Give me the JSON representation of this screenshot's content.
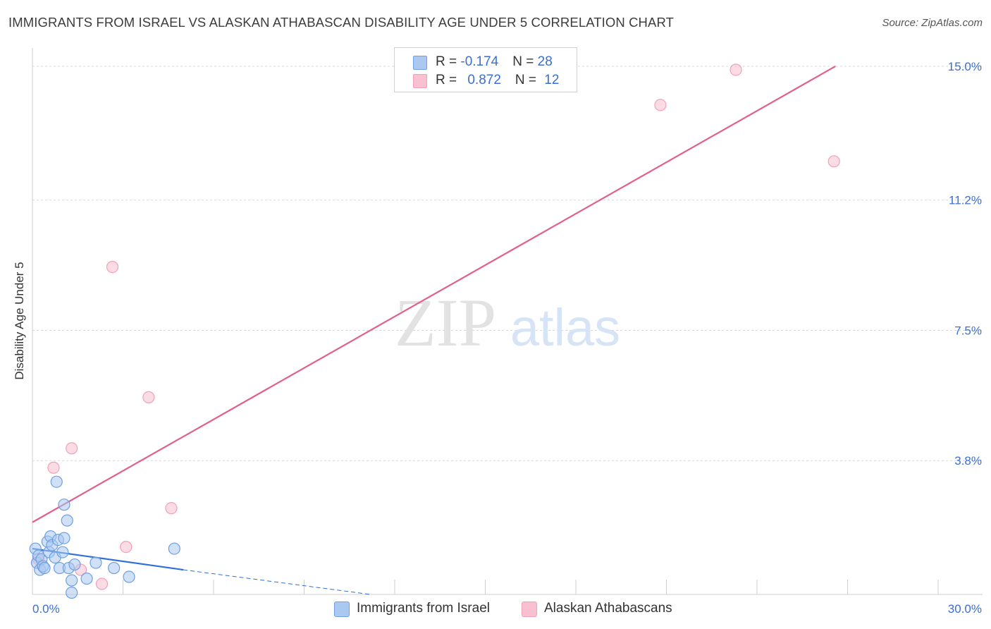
{
  "header": {
    "title": "IMMIGRANTS FROM ISRAEL VS ALASKAN ATHABASCAN DISABILITY AGE UNDER 5 CORRELATION CHART",
    "source": "Source: ZipAtlas.com"
  },
  "watermark": {
    "zip": "ZIP",
    "atlas": "atlas"
  },
  "legend": {
    "rows": [
      {
        "r_label": "R = ",
        "r_value": "-0.174",
        "n_label": "N = ",
        "n_value": "28"
      },
      {
        "r_label": "R = ",
        "r_value": "0.872",
        "n_label": "N = ",
        "n_value": "12"
      }
    ]
  },
  "bottom_legend": {
    "israel": "Immigrants from Israel",
    "athabascan": "Alaskan Athabascans"
  },
  "colors": {
    "blue_fill": "#aac8f0",
    "blue_stroke": "#6f9fe0",
    "blue_line": "#2e6fd8",
    "pink_fill": "#f8c0d0",
    "pink_stroke": "#f0a0b8",
    "pink_line": "#e0608a",
    "axis_label": "#3a6fd1",
    "grid": "#d8d8d8"
  },
  "chart_data": {
    "type": "scatter",
    "title": "IMMIGRANTS FROM ISRAEL VS ALASKAN ATHABASCAN DISABILITY AGE UNDER 5 CORRELATION CHART",
    "xlabel": "",
    "ylabel": "Disability Age Under 5",
    "xlim": [
      0,
      30
    ],
    "ylim": [
      0,
      15.4
    ],
    "x_tick_labels": [
      "0.0%",
      "30.0%"
    ],
    "y_ticks": [
      3.8,
      7.5,
      11.2,
      15.0
    ],
    "y_tick_labels": [
      "3.8%",
      "7.5%",
      "11.2%",
      "15.0%"
    ],
    "grid": true,
    "series": [
      {
        "name": "Immigrants from Israel",
        "points": [
          [
            0.1,
            1.3
          ],
          [
            0.15,
            0.9
          ],
          [
            0.2,
            1.1
          ],
          [
            0.25,
            0.7
          ],
          [
            0.3,
            1.0
          ],
          [
            0.35,
            0.8
          ],
          [
            0.4,
            0.75
          ],
          [
            0.5,
            1.5
          ],
          [
            0.55,
            1.2
          ],
          [
            0.6,
            1.65
          ],
          [
            0.65,
            1.4
          ],
          [
            0.75,
            1.05
          ],
          [
            0.8,
            3.2
          ],
          [
            0.85,
            1.55
          ],
          [
            0.9,
            0.75
          ],
          [
            1.0,
            1.2
          ],
          [
            1.05,
            1.6
          ],
          [
            1.05,
            2.55
          ],
          [
            1.15,
            2.1
          ],
          [
            1.2,
            0.75
          ],
          [
            1.3,
            0.05
          ],
          [
            1.3,
            0.4
          ],
          [
            1.4,
            0.85
          ],
          [
            1.8,
            0.45
          ],
          [
            2.1,
            0.9
          ],
          [
            2.7,
            0.75
          ],
          [
            3.2,
            0.5
          ],
          [
            4.7,
            1.3
          ]
        ],
        "trend": {
          "x": [
            0.0,
            5.0
          ],
          "y": [
            1.3,
            0.7
          ],
          "dashed_to": [
            11.2,
            0.0
          ]
        }
      },
      {
        "name": "Alaskan Athabascans",
        "points": [
          [
            0.2,
            1.0
          ],
          [
            0.7,
            3.6
          ],
          [
            1.3,
            4.15
          ],
          [
            1.6,
            0.7
          ],
          [
            2.3,
            0.3
          ],
          [
            2.65,
            9.3
          ],
          [
            3.1,
            1.35
          ],
          [
            3.85,
            5.6
          ],
          [
            4.6,
            2.45
          ],
          [
            20.8,
            13.9
          ],
          [
            23.3,
            14.9
          ],
          [
            26.55,
            12.3
          ]
        ],
        "trend": {
          "x": [
            0.0,
            26.6
          ],
          "y": [
            2.05,
            15.0
          ]
        }
      }
    ]
  }
}
